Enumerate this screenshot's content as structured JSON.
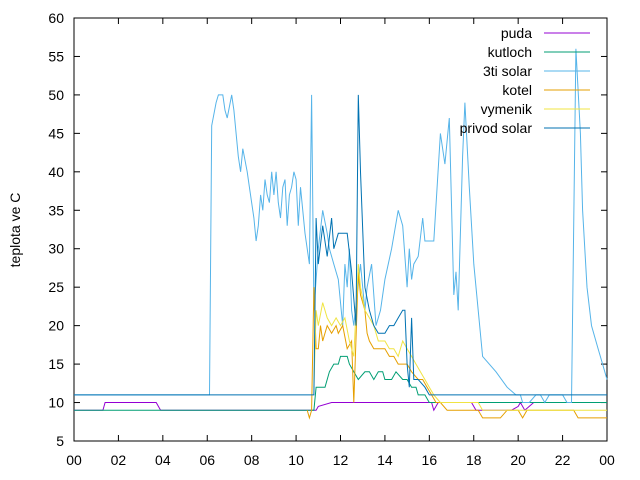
{
  "chart_data": {
    "type": "line",
    "ylabel": "teplota ve C",
    "xlabel": "",
    "title": "",
    "x_ticks": [
      "00",
      "02",
      "04",
      "06",
      "08",
      "10",
      "12",
      "14",
      "16",
      "18",
      "20",
      "22",
      "00"
    ],
    "xlim": [
      0,
      24
    ],
    "ylim": [
      5,
      60
    ],
    "y_ticks": [
      5,
      10,
      15,
      20,
      25,
      30,
      35,
      40,
      45,
      50,
      55,
      60
    ],
    "grid": false,
    "legend_position": "top-right",
    "series": [
      {
        "name": "puda",
        "color": "#9400d3",
        "points": [
          [
            0,
            9
          ],
          [
            1.3,
            9
          ],
          [
            1.4,
            10
          ],
          [
            3.7,
            10
          ],
          [
            3.9,
            9
          ],
          [
            10.9,
            9
          ],
          [
            11,
            9.5
          ],
          [
            11.6,
            10
          ],
          [
            16.1,
            10
          ],
          [
            16.2,
            9
          ],
          [
            16.4,
            10
          ],
          [
            17.9,
            10
          ],
          [
            18.1,
            9
          ],
          [
            19.7,
            9
          ],
          [
            20,
            9.5
          ],
          [
            20.1,
            10
          ],
          [
            20.3,
            9
          ],
          [
            20.7,
            10
          ],
          [
            24,
            10
          ]
        ]
      },
      {
        "name": "kutloch",
        "color": "#009e73",
        "points": [
          [
            0,
            9
          ],
          [
            10.8,
            9
          ],
          [
            10.9,
            12
          ],
          [
            11.3,
            12
          ],
          [
            11.4,
            13
          ],
          [
            11.5,
            14
          ],
          [
            11.7,
            15
          ],
          [
            11.9,
            15
          ],
          [
            12,
            16
          ],
          [
            12.3,
            16
          ],
          [
            12.4,
            15
          ],
          [
            12.6,
            14
          ],
          [
            12.8,
            13
          ],
          [
            13.1,
            14
          ],
          [
            13.3,
            14
          ],
          [
            13.5,
            13
          ],
          [
            13.7,
            14
          ],
          [
            13.9,
            14
          ],
          [
            14,
            13
          ],
          [
            14.3,
            13
          ],
          [
            14.5,
            14
          ],
          [
            14.8,
            13
          ],
          [
            15,
            13
          ],
          [
            15.2,
            12
          ],
          [
            15.4,
            12
          ],
          [
            15.5,
            11
          ],
          [
            15.8,
            11
          ],
          [
            16,
            10
          ],
          [
            24,
            10
          ]
        ]
      },
      {
        "name": "3ti solar",
        "color": "#56b4e9",
        "points": [
          [
            0,
            11
          ],
          [
            6.1,
            11
          ],
          [
            6.2,
            46
          ],
          [
            6.4,
            49
          ],
          [
            6.5,
            50
          ],
          [
            6.7,
            50
          ],
          [
            6.8,
            48
          ],
          [
            6.9,
            47
          ],
          [
            7.1,
            50
          ],
          [
            7.2,
            48
          ],
          [
            7.3,
            45
          ],
          [
            7.4,
            42
          ],
          [
            7.5,
            40
          ],
          [
            7.6,
            43
          ],
          [
            7.8,
            40
          ],
          [
            7.9,
            38
          ],
          [
            8.1,
            34
          ],
          [
            8.2,
            31
          ],
          [
            8.3,
            33
          ],
          [
            8.4,
            37
          ],
          [
            8.5,
            35
          ],
          [
            8.6,
            39
          ],
          [
            8.7,
            37
          ],
          [
            8.8,
            36
          ],
          [
            8.9,
            40
          ],
          [
            9,
            37
          ],
          [
            9.1,
            40
          ],
          [
            9.2,
            36
          ],
          [
            9.3,
            34
          ],
          [
            9.4,
            38
          ],
          [
            9.5,
            39
          ],
          [
            9.6,
            33
          ],
          [
            9.7,
            37
          ],
          [
            9.8,
            38
          ],
          [
            9.9,
            40
          ],
          [
            10,
            39
          ],
          [
            10.1,
            33
          ],
          [
            10.2,
            38
          ],
          [
            10.4,
            32
          ],
          [
            10.5,
            30
          ],
          [
            10.6,
            28
          ],
          [
            10.7,
            50
          ],
          [
            10.8,
            22
          ],
          [
            11,
            30
          ],
          [
            11.2,
            35
          ],
          [
            11.4,
            32
          ],
          [
            11.5,
            30
          ],
          [
            11.7,
            28
          ],
          [
            11.9,
            26
          ],
          [
            12.1,
            20
          ],
          [
            12.2,
            28
          ],
          [
            12.3,
            25
          ],
          [
            12.4,
            30
          ],
          [
            12.5,
            22
          ],
          [
            12.6,
            20
          ],
          [
            12.9,
            28
          ],
          [
            13.1,
            22
          ],
          [
            13.2,
            25
          ],
          [
            13.4,
            28
          ],
          [
            13.6,
            20
          ],
          [
            13.8,
            22
          ],
          [
            14,
            26
          ],
          [
            14.3,
            30
          ],
          [
            14.6,
            35
          ],
          [
            14.8,
            33
          ],
          [
            15,
            25
          ],
          [
            15.1,
            30
          ],
          [
            15.2,
            26
          ],
          [
            15.3,
            28
          ],
          [
            15.5,
            29
          ],
          [
            15.7,
            34
          ],
          [
            15.8,
            31
          ],
          [
            16.2,
            31
          ],
          [
            16.5,
            45
          ],
          [
            16.7,
            41
          ],
          [
            16.9,
            47
          ],
          [
            17.1,
            24
          ],
          [
            17.2,
            27
          ],
          [
            17.3,
            22
          ],
          [
            17.5,
            42
          ],
          [
            17.6,
            49
          ],
          [
            17.8,
            38
          ],
          [
            18,
            28
          ],
          [
            18.2,
            22
          ],
          [
            18.4,
            16
          ],
          [
            19,
            14
          ],
          [
            19.5,
            12
          ],
          [
            19.9,
            11
          ],
          [
            20.1,
            11
          ],
          [
            20.2,
            10
          ],
          [
            20.5,
            10
          ],
          [
            20.8,
            11
          ],
          [
            21,
            11
          ],
          [
            21.2,
            10
          ],
          [
            21.4,
            11
          ],
          [
            21.7,
            11
          ],
          [
            22,
            11
          ],
          [
            22.2,
            10
          ],
          [
            22.4,
            10
          ],
          [
            22.6,
            56
          ],
          [
            22.8,
            45
          ],
          [
            22.9,
            35
          ],
          [
            23.1,
            25
          ],
          [
            23.3,
            20
          ],
          [
            23.6,
            17
          ],
          [
            23.8,
            15
          ],
          [
            24,
            13
          ]
        ]
      },
      {
        "name": "kotel",
        "color": "#e69f00",
        "points": [
          [
            10.5,
            9
          ],
          [
            10.6,
            8
          ],
          [
            10.7,
            9
          ],
          [
            10.8,
            25
          ],
          [
            10.9,
            17
          ],
          [
            11,
            17
          ],
          [
            11.1,
            20
          ],
          [
            11.2,
            18
          ],
          [
            11.4,
            20
          ],
          [
            11.6,
            19
          ],
          [
            11.8,
            20
          ],
          [
            11.9,
            19
          ],
          [
            12.1,
            20
          ],
          [
            12.3,
            17
          ],
          [
            12.5,
            18
          ],
          [
            12.6,
            10
          ],
          [
            12.8,
            27
          ],
          [
            12.9,
            24
          ],
          [
            13.1,
            22
          ],
          [
            13.2,
            19
          ],
          [
            13.3,
            18
          ],
          [
            13.5,
            17
          ],
          [
            14,
            17
          ],
          [
            14.2,
            16
          ],
          [
            14.4,
            16
          ],
          [
            14.6,
            15
          ],
          [
            15,
            15
          ],
          [
            15.2,
            14
          ],
          [
            15.5,
            13
          ],
          [
            15.7,
            13
          ],
          [
            15.9,
            12
          ],
          [
            16.1,
            11
          ],
          [
            16.3,
            10
          ],
          [
            16.5,
            10
          ],
          [
            16.8,
            9
          ],
          [
            17.2,
            9
          ],
          [
            18.2,
            9
          ],
          [
            18.4,
            8
          ],
          [
            19.2,
            8
          ],
          [
            19.5,
            9
          ],
          [
            20,
            9
          ],
          [
            20.2,
            8
          ],
          [
            20.4,
            9
          ],
          [
            22.5,
            9
          ],
          [
            22.7,
            8
          ],
          [
            24,
            8
          ]
        ]
      },
      {
        "name": "vymenik",
        "color": "#f0e442",
        "points": [
          [
            10.8,
            12
          ],
          [
            10.9,
            22
          ],
          [
            11,
            20
          ],
          [
            11.2,
            23
          ],
          [
            11.4,
            21
          ],
          [
            11.6,
            20
          ],
          [
            11.8,
            21
          ],
          [
            12,
            20
          ],
          [
            12.2,
            21
          ],
          [
            12.4,
            18
          ],
          [
            12.6,
            16
          ],
          [
            12.8,
            28
          ],
          [
            12.9,
            25
          ],
          [
            13.1,
            22
          ],
          [
            13.3,
            21
          ],
          [
            13.5,
            20
          ],
          [
            13.7,
            18
          ],
          [
            14,
            18
          ],
          [
            14.2,
            17
          ],
          [
            14.4,
            17
          ],
          [
            14.6,
            16
          ],
          [
            14.8,
            18
          ],
          [
            15,
            17
          ],
          [
            15.2,
            16
          ],
          [
            15.4,
            15
          ],
          [
            15.6,
            14
          ],
          [
            15.8,
            13
          ],
          [
            16,
            12
          ],
          [
            16.2,
            11
          ],
          [
            16.5,
            10
          ],
          [
            17,
            10
          ],
          [
            18.2,
            10
          ],
          [
            18.4,
            9
          ],
          [
            24,
            9
          ]
        ]
      },
      {
        "name": "privod solar",
        "color": "#0072b2",
        "points": [
          [
            0,
            11
          ],
          [
            10.6,
            11
          ],
          [
            10.8,
            11
          ],
          [
            10.9,
            34
          ],
          [
            11,
            28
          ],
          [
            11.2,
            33
          ],
          [
            11.4,
            29
          ],
          [
            11.6,
            34
          ],
          [
            11.7,
            30
          ],
          [
            11.9,
            32
          ],
          [
            12.3,
            32
          ],
          [
            12.5,
            27
          ],
          [
            12.7,
            20
          ],
          [
            12.8,
            50
          ],
          [
            12.9,
            40
          ],
          [
            13.1,
            25
          ],
          [
            13.3,
            22
          ],
          [
            13.5,
            20
          ],
          [
            13.7,
            19
          ],
          [
            14,
            19
          ],
          [
            14.2,
            20
          ],
          [
            14.4,
            20
          ],
          [
            14.6,
            21
          ],
          [
            14.8,
            22
          ],
          [
            14.9,
            22
          ],
          [
            15,
            15
          ],
          [
            15.1,
            12
          ],
          [
            15.2,
            21
          ],
          [
            15.3,
            13
          ],
          [
            15.5,
            13
          ],
          [
            15.8,
            12
          ],
          [
            16,
            11
          ],
          [
            24,
            11
          ]
        ]
      }
    ]
  }
}
